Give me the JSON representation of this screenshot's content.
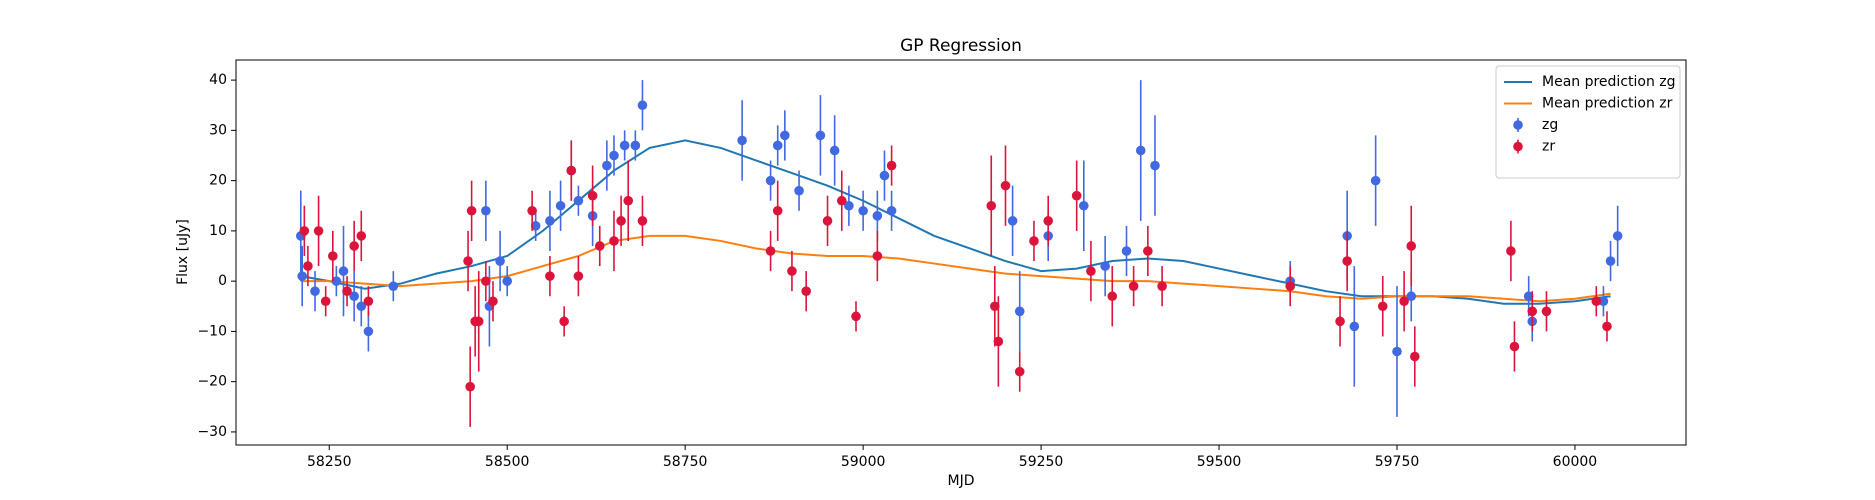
{
  "chart_data": {
    "type": "errorbar",
    "title": "GP Regression",
    "x_label": "MJD",
    "y_label": "Flux [uJy]",
    "xlim": [
      58119,
      60156
    ],
    "ylim": [
      -32.6,
      44
    ],
    "xticks": [
      58250,
      58500,
      58750,
      59000,
      59250,
      59500,
      59750,
      60000
    ],
    "yticks": [
      {
        "value": -30,
        "label": "−30"
      },
      {
        "value": -20,
        "label": "−20"
      },
      {
        "value": -10,
        "label": "−10"
      },
      0,
      10,
      20,
      30,
      40
    ],
    "legend": "upper right",
    "grid": false,
    "series": [
      {
        "name": "Mean prediction zg",
        "kind": "line",
        "color": "#1f77b4",
        "x": [
          58210,
          58250,
          58300,
          58350,
          58400,
          58450,
          58500,
          58550,
          58600,
          58650,
          58700,
          58750,
          58800,
          58850,
          58900,
          58950,
          59000,
          59050,
          59100,
          59150,
          59200,
          59250,
          59300,
          59350,
          59400,
          59450,
          59500,
          59550,
          59600,
          59650,
          59700,
          59750,
          59800,
          59850,
          59900,
          59950,
          60000,
          60050
        ],
        "values": [
          1,
          0,
          -1.5,
          -0.5,
          1.5,
          3,
          5,
          10,
          16,
          22,
          26.5,
          28,
          26.5,
          24,
          21.5,
          19,
          16,
          12.5,
          9,
          6.5,
          4,
          2,
          2.5,
          4,
          4.5,
          4,
          2.5,
          1,
          -0.5,
          -2,
          -3,
          -3,
          -3,
          -3.5,
          -4.5,
          -4.5,
          -4,
          -3
        ]
      },
      {
        "name": "Mean prediction zr",
        "kind": "line",
        "color": "#ff7f0e",
        "x": [
          58210,
          58250,
          58300,
          58350,
          58400,
          58450,
          58500,
          58550,
          58600,
          58650,
          58700,
          58750,
          58800,
          58850,
          58900,
          58950,
          59000,
          59050,
          59100,
          59150,
          59200,
          59250,
          59300,
          59350,
          59400,
          59450,
          59500,
          59550,
          59600,
          59650,
          59700,
          59750,
          59800,
          59850,
          59900,
          59950,
          60000,
          60050
        ],
        "values": [
          0,
          0,
          -0.5,
          -1,
          -0.5,
          0,
          1,
          3,
          5,
          8,
          9,
          9,
          8,
          6.5,
          5.5,
          5,
          5,
          4.5,
          3.5,
          2.5,
          1.5,
          1,
          0.5,
          0,
          0,
          -0.5,
          -1,
          -1.5,
          -2,
          -3,
          -3.5,
          -3,
          -3,
          -3,
          -3.5,
          -4,
          -3.5,
          -2.5
        ]
      },
      {
        "name": "zg",
        "kind": "points",
        "color": "#4169e1",
        "x": [
          58210,
          58212,
          58230,
          58260,
          58270,
          58285,
          58295,
          58305,
          58340,
          58470,
          58475,
          58490,
          58500,
          58540,
          58560,
          58575,
          58590,
          58600,
          58620,
          58640,
          58650,
          58665,
          58680,
          58690,
          58830,
          58870,
          58880,
          58890,
          58910,
          58940,
          58960,
          58980,
          59000,
          59020,
          59030,
          59040,
          59210,
          59220,
          59260,
          59310,
          59340,
          59370,
          59390,
          59410,
          59600,
          59680,
          59690,
          59720,
          59750,
          59770,
          59935,
          59940,
          60040,
          60050,
          60060
        ],
        "values": [
          9,
          1,
          -2,
          0,
          2,
          -3,
          -5,
          -10,
          -1,
          14,
          -5,
          4,
          0,
          11,
          12,
          15,
          22,
          16,
          13,
          23,
          25,
          27,
          27,
          35,
          28,
          20,
          27,
          29,
          18,
          29,
          26,
          15,
          14,
          13,
          21,
          14,
          12,
          -6,
          9,
          15,
          3,
          6,
          26,
          23,
          0,
          9,
          -9,
          20,
          -14,
          -3,
          -3,
          -8,
          -4,
          4,
          9
        ],
        "errors": [
          9,
          6,
          4,
          3,
          9,
          5,
          4,
          4,
          3,
          6,
          8,
          6,
          3,
          3,
          6,
          5,
          6,
          3,
          6,
          5,
          4,
          3,
          3,
          5,
          8,
          4,
          4,
          5,
          4,
          8,
          7,
          4,
          4,
          5,
          5,
          4,
          7,
          8,
          5,
          9,
          6,
          5,
          14,
          10,
          4,
          9,
          12,
          9,
          13,
          5,
          4,
          4,
          3,
          4,
          6
        ]
      },
      {
        "name": "zr",
        "kind": "points",
        "color": "#dc143c",
        "x": [
          58215,
          58220,
          58235,
          58245,
          58255,
          58275,
          58285,
          58295,
          58305,
          58445,
          58448,
          58450,
          58455,
          58460,
          58470,
          58480,
          58535,
          58560,
          58580,
          58590,
          58600,
          58620,
          58630,
          58650,
          58660,
          58670,
          58690,
          58870,
          58880,
          58900,
          58920,
          58950,
          58970,
          58990,
          59020,
          59040,
          59180,
          59185,
          59190,
          59200,
          59220,
          59240,
          59260,
          59300,
          59320,
          59350,
          59380,
          59400,
          59420,
          59600,
          59670,
          59680,
          59730,
          59760,
          59770,
          59775,
          59910,
          59915,
          59940,
          59960,
          60030,
          60045
        ],
        "values": [
          10,
          3,
          10,
          -4,
          5,
          -2,
          7,
          9,
          -4,
          4,
          -21,
          14,
          -8,
          -8,
          0,
          -4,
          14,
          1,
          -8,
          22,
          1,
          17,
          7,
          8,
          12,
          16,
          12,
          6,
          14,
          2,
          -2,
          12,
          16,
          -7,
          5,
          23,
          15,
          -5,
          -12,
          19,
          -18,
          8,
          12,
          17,
          2,
          -3,
          -1,
          6,
          -1,
          -1,
          -8,
          4,
          -5,
          -4,
          7,
          -15,
          6,
          -13,
          -6,
          -6,
          -4,
          -9
        ],
        "errors": [
          5,
          4,
          7,
          3,
          5,
          3,
          5,
          5,
          3,
          6,
          8,
          6,
          7,
          10,
          4,
          4,
          4,
          4,
          3,
          6,
          4,
          6,
          4,
          6,
          5,
          8,
          5,
          4,
          6,
          4,
          4,
          5,
          6,
          3,
          5,
          4,
          10,
          8,
          9,
          8,
          4,
          4,
          5,
          7,
          6,
          6,
          4,
          5,
          4,
          4,
          5,
          6,
          6,
          6,
          8,
          6,
          6,
          5,
          4,
          4,
          3,
          3
        ]
      }
    ]
  }
}
